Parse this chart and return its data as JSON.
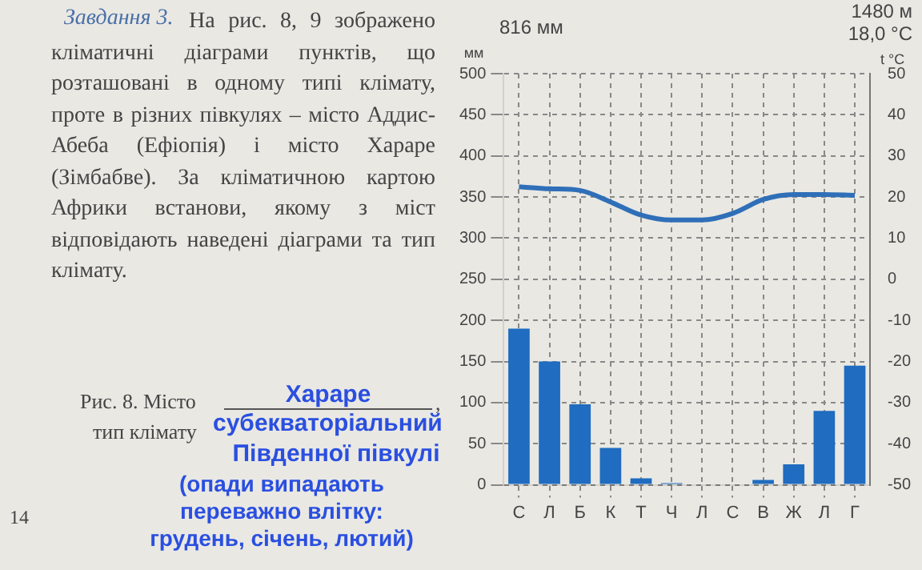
{
  "chart_data": {
    "type": "bar",
    "categories": [
      "С",
      "Л",
      "Б",
      "К",
      "Т",
      "Ч",
      "Л",
      "С",
      "В",
      "Ж",
      "Л",
      "Г"
    ],
    "series": [
      {
        "color": "#1f6cc0",
        "values": [
          190,
          150,
          98,
          45,
          8,
          2,
          1,
          1,
          6,
          25,
          90,
          145
        ]
      },
      {
        "type": "line",
        "axis": "y2",
        "color": "#2f6fb8",
        "values": [
          22.5,
          22,
          21.6,
          18.8,
          15.6,
          14.4,
          14.4,
          16,
          19.4,
          20.6,
          20.6,
          20.4
        ]
      }
    ],
    "ylabel": "мм",
    "y2label": "t °C",
    "ylim": [
      0,
      500
    ],
    "yticks": [
      0,
      50,
      100,
      150,
      200,
      250,
      300,
      350,
      400,
      450,
      500
    ],
    "y2lim": [
      -50,
      50
    ],
    "y2ticks": [
      -50,
      -40,
      -30,
      -20,
      -10,
      0,
      10,
      20,
      30,
      40,
      50
    ],
    "grid": true,
    "legend": false,
    "marker": "none",
    "line_style": "solid",
    "annotations": [
      "816 мм",
      "1480 м",
      "18,0 °C",
      "Завдання 3.",
      "На рис. 8, 9 зображено кліматичні діаграми пунктів, що розташовані в одному типі клімату, проте в різних півкулях – місто Аддис-Абеба (Ефіопія) і місто Хараре (Зімбабве). За кліматичною картою Африки встанови, якому з міст відповідають наведені діаграми та тип клімату.",
      "Рис. 8. Місто",
      "Хараре",
      ",",
      "тип клімату",
      "субекваторіальний",
      "Південної півкулі",
      "(опади випадають переважно влітку: грудень, січень, лютий)",
      "14"
    ]
  }
}
